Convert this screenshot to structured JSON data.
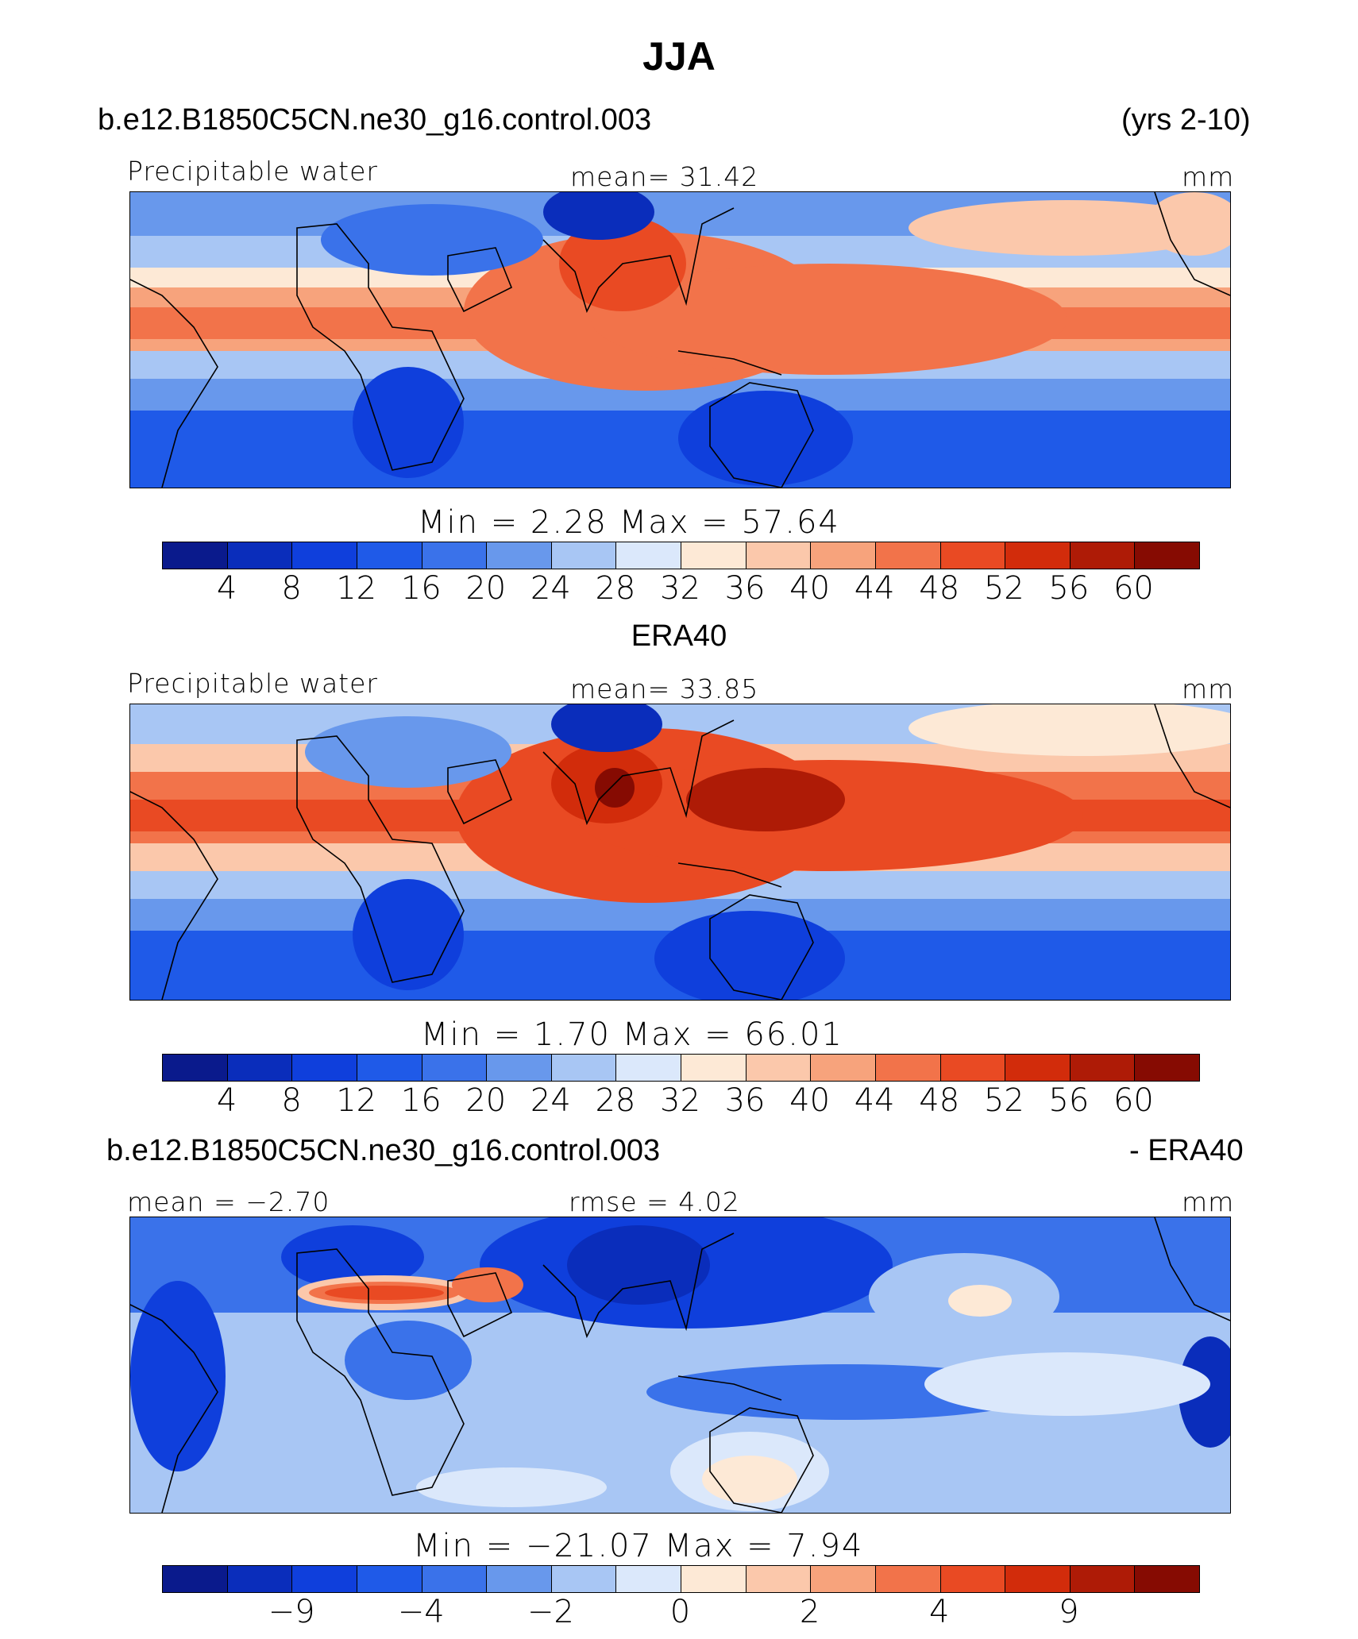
{
  "title": "JJA",
  "panel1": {
    "case": "b.e12.B1850C5CN.ne30_g16.control.003",
    "years": "(yrs 2-10)",
    "left_label": "Precipitable water",
    "center_label": "mean=   31.42",
    "units": "mm",
    "minmax": "Min  =    2.28 Max  =   57.64"
  },
  "panel2": {
    "heading": "ERA40",
    "left_label": "Precipitable water",
    "center_label": "mean=   33.85",
    "units": "mm",
    "minmax": "Min  =    1.70 Max  =   66.01"
  },
  "panel3": {
    "case": "b.e12.B1850C5CN.ne30_g16.control.003",
    "suffix": "- ERA40",
    "left_label": "mean =  −2.70",
    "center_label": "rmse  =    4.02",
    "units": "mm",
    "minmax": "Min  = −21.07 Max  =    7.94"
  },
  "colorbar_colors": [
    "#0a1a8c",
    "#0a2dbb",
    "#0f3fdc",
    "#1f5ae8",
    "#3a72ea",
    "#6898ec",
    "#a8c6f4",
    "#dbe8fb",
    "#fde9d6",
    "#fbc8ab",
    "#f7a37c",
    "#f2734a",
    "#e94a23",
    "#d22c0b",
    "#ae1b06",
    "#860b02"
  ],
  "colorbar1_ticks": [
    "4",
    "8",
    "12",
    "16",
    "20",
    "24",
    "28",
    "32",
    "36",
    "40",
    "44",
    "48",
    "52",
    "56",
    "60"
  ],
  "colorbar2_ticks": [
    "4",
    "8",
    "12",
    "16",
    "20",
    "24",
    "28",
    "32",
    "36",
    "40",
    "44",
    "48",
    "52",
    "56",
    "60"
  ],
  "colorbar3_ticks": [
    "−9",
    "−4",
    "−2",
    "0",
    "2",
    "4",
    "9"
  ]
}
